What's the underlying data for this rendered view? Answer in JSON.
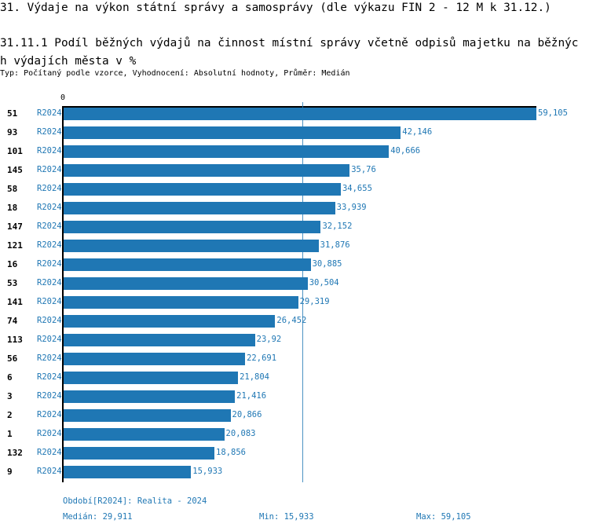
{
  "title": "31. Výdaje na výkon státní správy a samosprávy (dle výkazu FIN 2 - 12 M k 31.12.)",
  "subtitle": "31.11.1 Podíl běžných výdajů na činnost místní správy včetně odpisů majetku na běžných výdajích města v %",
  "meta": "Typ: Počítaný podle vzorce, Vyhodnocení: Absolutní hodnoty, Průměr: Medián",
  "chart_data": {
    "type": "bar",
    "orientation": "horizontal",
    "axis_zero_label": "0",
    "period": "R2024",
    "categories": [
      "51",
      "93",
      "101",
      "145",
      "58",
      "18",
      "147",
      "121",
      "16",
      "53",
      "141",
      "74",
      "113",
      "56",
      "6",
      "3",
      "2",
      "1",
      "132",
      "9"
    ],
    "values": [
      59.105,
      42.146,
      40.666,
      35.76,
      34.655,
      33.939,
      32.152,
      31.876,
      30.885,
      30.504,
      29.319,
      26.452,
      23.92,
      22.691,
      21.804,
      21.416,
      20.866,
      20.083,
      18.856,
      15.933
    ],
    "value_labels": [
      "59,105",
      "42,146",
      "40,666",
      "35,76",
      "34,655",
      "33,939",
      "32,152",
      "31,876",
      "30,885",
      "30,504",
      "29,319",
      "26,452",
      "23,92",
      "22,691",
      "21,804",
      "21,416",
      "20,866",
      "20,083",
      "18,856",
      "15,933"
    ],
    "median": 29.911,
    "xlim": [
      0,
      59.105
    ],
    "bar_color": "#1f77b4"
  },
  "footer": {
    "legend": "Období[R2024]: Realita - 2024",
    "median": "Medián: 29,911",
    "min": "Min: 15,933",
    "max": "Max: 59,105"
  }
}
